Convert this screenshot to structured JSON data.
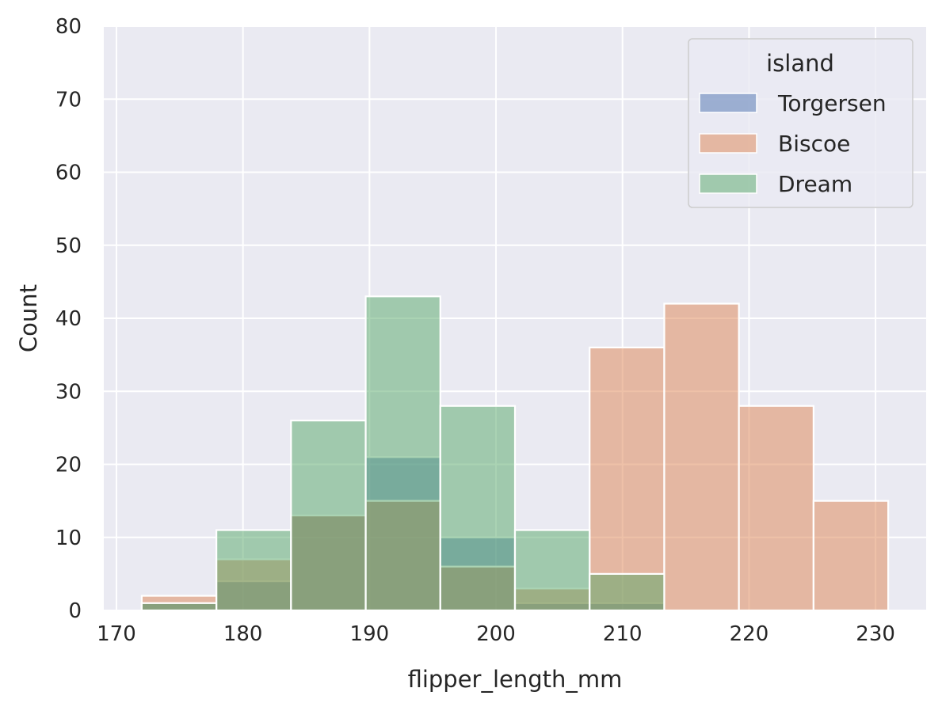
{
  "chart_data": {
    "type": "bar",
    "title": "",
    "xlabel": "flipper_length_mm",
    "ylabel": "Count",
    "xlim": [
      169,
      234
    ],
    "ylim": [
      0,
      80
    ],
    "xticks": [
      170,
      180,
      190,
      200,
      210,
      220,
      230
    ],
    "yticks": [
      0,
      10,
      20,
      30,
      40,
      50,
      60,
      70,
      80
    ],
    "grid": true,
    "legend": {
      "title": "island",
      "placement": "top-right"
    },
    "bin_edges": [
      172.0,
      177.9,
      183.8,
      189.7,
      195.6,
      201.5,
      207.4,
      213.3,
      219.2,
      225.1,
      231.0
    ],
    "series": [
      {
        "name": "Torgersen",
        "color": "#4c72b0",
        "values": [
          1,
          4,
          13,
          21,
          10,
          1,
          1,
          0,
          0,
          0
        ]
      },
      {
        "name": "Biscoe",
        "color": "#dd8452",
        "values": [
          2,
          7,
          13,
          15,
          6,
          3,
          36,
          42,
          28,
          15
        ]
      },
      {
        "name": "Dream",
        "color": "#55a868",
        "values": [
          1,
          11,
          26,
          43,
          28,
          11,
          5,
          0,
          0,
          0
        ]
      }
    ]
  }
}
